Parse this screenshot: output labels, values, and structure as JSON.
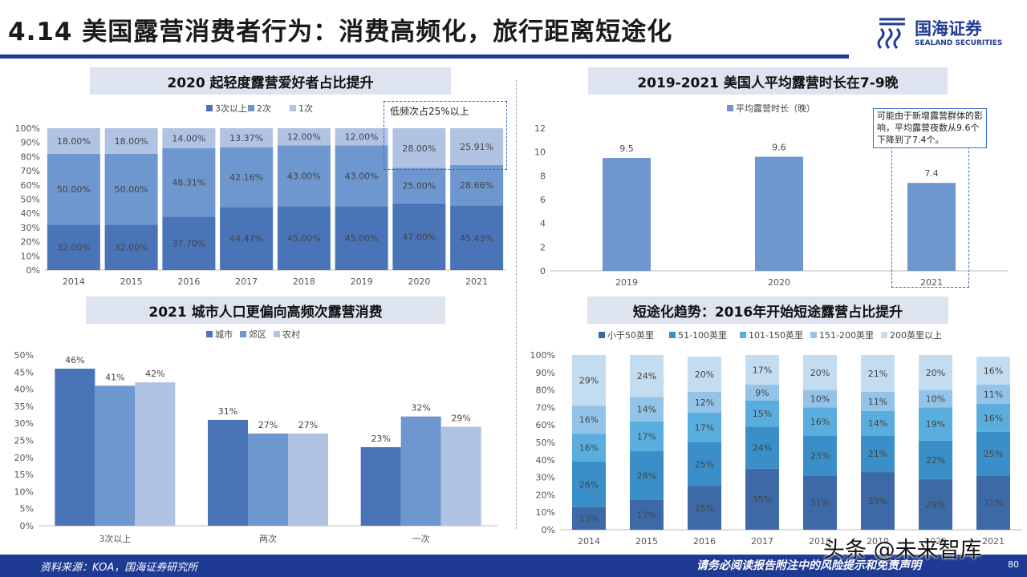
{
  "header": {
    "title": "4.14 美国露营消费者行为：消费高频化，旅行距离短途化",
    "logo_cn": "国海证券",
    "logo_en": "SEALAND SECURITIES"
  },
  "footer": {
    "source": "资料来源：KOA，国海证券研究所",
    "disclaimer": "请务必阅读报告附注中的风险提示和免责声明",
    "page": "80",
    "watermark": "头条 @未来智库"
  },
  "colors": {
    "brand": "#1f3a93",
    "s1": "#4a74b8",
    "s2": "#6e96cf",
    "s3": "#b0c3e3",
    "d1": "#3d6aa6",
    "d2": "#3a8fc8",
    "d3": "#5aaede",
    "d4": "#93c3e8",
    "d5": "#c3dcf0"
  },
  "annotations": {
    "low_freq": "低频次占25%以上",
    "trip_note": "可能由于新增露营群体的影响，平均露营夜数从9.6个下降到了7.4个。"
  },
  "chart_data": [
    {
      "id": "freq",
      "type": "bar",
      "stacked": true,
      "title": "2020 起轻度露营爱好者占比提升",
      "categories": [
        "2014",
        "2015",
        "2016",
        "2017",
        "2018",
        "2019",
        "2020",
        "2021"
      ],
      "series": [
        {
          "name": "3次以上",
          "values": [
            32.0,
            32.0,
            37.7,
            44.47,
            45.0,
            45.0,
            47.0,
            45.43
          ]
        },
        {
          "name": "2次",
          "values": [
            50.0,
            50.0,
            48.31,
            42.16,
            43.0,
            43.0,
            25.0,
            28.66
          ]
        },
        {
          "name": "1次",
          "values": [
            18.0,
            18.0,
            14.0,
            13.37,
            12.0,
            12.0,
            28.0,
            25.91
          ]
        }
      ],
      "ylim": [
        0,
        100
      ],
      "yticks": [
        "0%",
        "10%",
        "20%",
        "30%",
        "40%",
        "50%",
        "60%",
        "70%",
        "80%",
        "90%",
        "100%"
      ],
      "legend": "top"
    },
    {
      "id": "nights",
      "type": "bar",
      "title": "2019-2021 美国人平均露营时长在7-9晚",
      "categories": [
        "2019",
        "2020",
        "2021"
      ],
      "series": [
        {
          "name": "平均露营时长（晚）",
          "values": [
            9.5,
            9.6,
            7.4
          ]
        }
      ],
      "ylim": [
        0,
        12
      ],
      "yticks": [
        "0",
        "2",
        "4",
        "6",
        "8",
        "10",
        "12"
      ],
      "legend": "top"
    },
    {
      "id": "city",
      "type": "bar",
      "title": "2021 城市人口更偏向高频次露营消费",
      "categories": [
        "3次以上",
        "两次",
        "一次"
      ],
      "series": [
        {
          "name": "城市",
          "values": [
            46,
            31,
            23
          ]
        },
        {
          "name": "郊区",
          "values": [
            41,
            27,
            32
          ]
        },
        {
          "name": "农村",
          "values": [
            42,
            27,
            29
          ]
        }
      ],
      "ylim": [
        0,
        50
      ],
      "yticks": [
        "0%",
        "5%",
        "10%",
        "15%",
        "20%",
        "25%",
        "30%",
        "35%",
        "40%",
        "45%",
        "50%"
      ],
      "legend": "top"
    },
    {
      "id": "dist",
      "type": "bar",
      "stacked": true,
      "title": "短途化趋势：2016年开始短途露营占比提升",
      "categories": [
        "2014",
        "2015",
        "2016",
        "2017",
        "2018",
        "2019",
        "2020",
        "2021"
      ],
      "series": [
        {
          "name": "小于50英里",
          "values": [
            13,
            17,
            25,
            35,
            31,
            33,
            29,
            31
          ]
        },
        {
          "name": "51-100英里",
          "values": [
            26,
            28,
            25,
            24,
            23,
            21,
            22,
            25
          ]
        },
        {
          "name": "101-150英里",
          "values": [
            16,
            17,
            17,
            15,
            16,
            14,
            19,
            16
          ]
        },
        {
          "name": "151-200英里",
          "values": [
            16,
            14,
            12,
            9,
            10,
            11,
            10,
            11
          ]
        },
        {
          "name": "200英里以上",
          "values": [
            29,
            24,
            20,
            17,
            20,
            21,
            20,
            16
          ]
        }
      ],
      "ylim": [
        0,
        100
      ],
      "yticks": [
        "0%",
        "10%",
        "20%",
        "30%",
        "40%",
        "50%",
        "60%",
        "70%",
        "80%",
        "90%",
        "100%"
      ],
      "legend": "top"
    }
  ]
}
